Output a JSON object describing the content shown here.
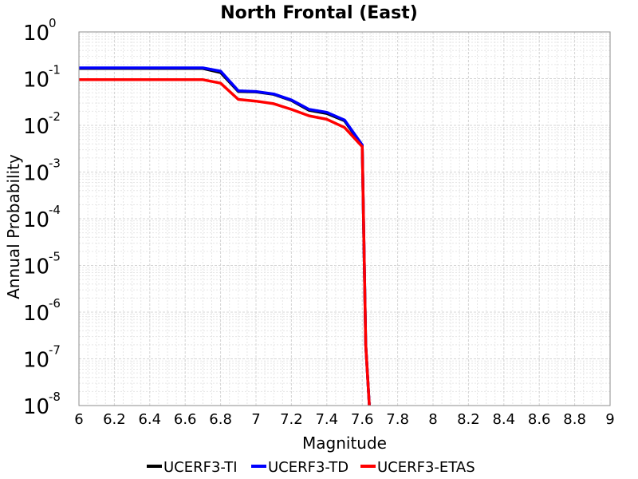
{
  "chart_data": {
    "type": "line",
    "title": "North Frontal  (East)",
    "xlabel": "Magnitude",
    "ylabel": "Annual Probability",
    "xlim": [
      6,
      9
    ],
    "ylim": [
      1e-08,
      1
    ],
    "yscale": "log",
    "grid": true,
    "legend": "bottom",
    "x_ticks": [
      "6",
      "6.2",
      "6.4",
      "6.6",
      "6.8",
      "7",
      "7.2",
      "7.4",
      "7.6",
      "7.8",
      "8",
      "8.2",
      "8.4",
      "8.6",
      "8.8",
      "9"
    ],
    "y_ticks": [
      {
        "base": "10",
        "exp": "-8"
      },
      {
        "base": "10",
        "exp": "-7"
      },
      {
        "base": "10",
        "exp": "-6"
      },
      {
        "base": "10",
        "exp": "-5"
      },
      {
        "base": "10",
        "exp": "-4"
      },
      {
        "base": "10",
        "exp": "-3"
      },
      {
        "base": "10",
        "exp": "-2"
      },
      {
        "base": "10",
        "exp": "-1"
      },
      {
        "base": "10",
        "exp": "0"
      }
    ],
    "series": [
      {
        "name": "UCERF3-TI",
        "color": "#000000",
        "x": [
          6.0,
          6.1,
          6.2,
          6.3,
          6.4,
          6.5,
          6.6,
          6.7,
          6.8,
          6.9,
          7.0,
          7.1,
          7.2,
          7.3,
          7.4,
          7.5,
          7.6,
          7.62,
          7.64
        ],
        "y": [
          0.165,
          0.165,
          0.165,
          0.165,
          0.165,
          0.165,
          0.165,
          0.165,
          0.135,
          0.053,
          0.052,
          0.046,
          0.034,
          0.021,
          0.018,
          0.0125,
          0.0037,
          2e-07,
          1e-08
        ]
      },
      {
        "name": "UCERF3-TD",
        "color": "#0000ff",
        "x": [
          6.0,
          6.1,
          6.2,
          6.3,
          6.4,
          6.5,
          6.6,
          6.7,
          6.8,
          6.9,
          7.0,
          7.1,
          7.2,
          7.3,
          7.4,
          7.5,
          7.6,
          7.62,
          7.64
        ],
        "y": [
          0.17,
          0.17,
          0.17,
          0.17,
          0.17,
          0.17,
          0.17,
          0.17,
          0.145,
          0.055,
          0.053,
          0.047,
          0.035,
          0.022,
          0.019,
          0.013,
          0.0038,
          2e-07,
          1e-08
        ]
      },
      {
        "name": "UCERF3-ETAS",
        "color": "#ff0000",
        "x": [
          6.0,
          6.1,
          6.2,
          6.3,
          6.4,
          6.5,
          6.6,
          6.7,
          6.8,
          6.9,
          7.0,
          7.1,
          7.2,
          7.3,
          7.4,
          7.5,
          7.6,
          7.62,
          7.64
        ],
        "y": [
          0.095,
          0.095,
          0.095,
          0.095,
          0.095,
          0.095,
          0.095,
          0.095,
          0.08,
          0.036,
          0.033,
          0.029,
          0.022,
          0.016,
          0.0135,
          0.009,
          0.0035,
          2e-07,
          1e-08
        ]
      }
    ]
  }
}
